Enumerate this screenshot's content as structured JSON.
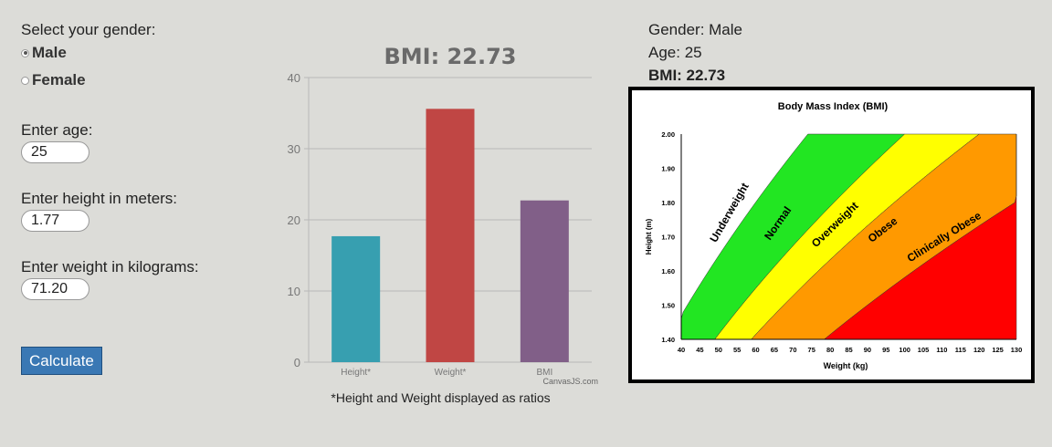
{
  "form": {
    "gender_prompt": "Select your gender:",
    "gender_options": [
      {
        "label": "Male",
        "selected": true
      },
      {
        "label": "Female",
        "selected": false
      }
    ],
    "age_label": "Enter age:",
    "age_value": "25",
    "height_label": "Enter height in meters:",
    "height_value": "1.77",
    "weight_label": "Enter weight in kilograms:",
    "weight_value": "71.20",
    "calculate_label": "Calculate"
  },
  "result": {
    "gender_line": "Gender: Male",
    "age_line": "Age: 25",
    "bmi_line": "BMI: 22.73"
  },
  "chart_note": "*Height and Weight displayed as ratios",
  "chart_credit": "CanvasJS.com",
  "chart_data": {
    "type": "bar",
    "title": "BMI: 22.73",
    "categories": [
      "Height*",
      "Weight*",
      "BMI"
    ],
    "values": [
      17.7,
      35.6,
      22.73
    ],
    "colors": [
      "#379fb0",
      "#c04644",
      "#815f88"
    ],
    "ylim": [
      0,
      40
    ],
    "yticks": [
      0,
      10,
      20,
      30,
      40
    ],
    "grid": true
  },
  "bmi_reference": {
    "title": "Body Mass Index (BMI)",
    "xlabel": "Weight (kg)",
    "ylabel": "Height (m)",
    "x_ticks": [
      "40",
      "45",
      "50",
      "55",
      "60",
      "65",
      "70",
      "75",
      "80",
      "85",
      "90",
      "95",
      "100",
      "105",
      "110",
      "115",
      "120",
      "125",
      "130"
    ],
    "y_ticks": [
      "1.40",
      "1.50",
      "1.60",
      "1.70",
      "1.80",
      "1.90",
      "2.00"
    ],
    "zones": [
      {
        "label": "Underweight",
        "color": "#ffffff"
      },
      {
        "label": "Normal",
        "color": "#22e622"
      },
      {
        "label": "Overweight",
        "color": "#ffff00"
      },
      {
        "label": "Obese",
        "color": "#ff9900"
      },
      {
        "label": "Clinically Obese",
        "color": "#ff0000"
      }
    ]
  }
}
